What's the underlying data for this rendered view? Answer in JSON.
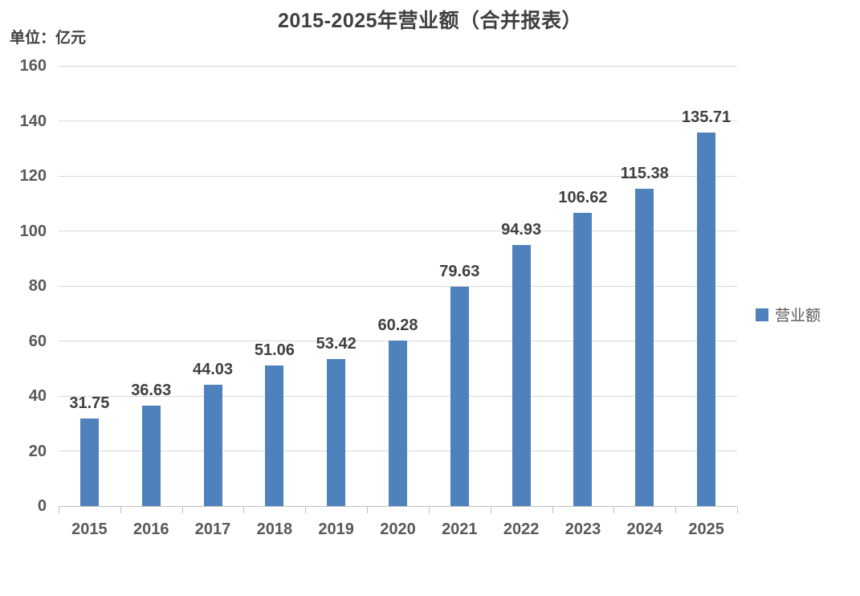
{
  "title": "2015-2025年营业额（合并报表）",
  "unit_label": "单位：亿元",
  "legend": {
    "label": "营业额",
    "swatch_color": "#4F81BD",
    "swatch_icon": "legend-square-icon"
  },
  "colors": {
    "bar": "#4F81BD",
    "gridline": "#d9d9d9",
    "axis_line": "#bfbfbf",
    "title_text": "#404040",
    "axis_text": "#595959",
    "data_label_text": "#404040"
  },
  "chart_data": {
    "type": "bar",
    "title": "2015-2025年营业额（合并报表）",
    "xlabel": "",
    "ylabel": "单位：亿元",
    "categories": [
      "2015",
      "2016",
      "2017",
      "2018",
      "2019",
      "2020",
      "2021",
      "2022",
      "2023",
      "2024",
      "2025"
    ],
    "series": [
      {
        "name": "营业额",
        "color": "#4F81BD",
        "values": [
          31.75,
          36.63,
          44.03,
          51.06,
          53.42,
          60.28,
          79.63,
          94.93,
          106.62,
          115.38,
          135.71
        ],
        "value_labels": [
          "31.75",
          "36.63",
          "44.03",
          "51.06",
          "53.42",
          "60.28",
          "79.63",
          "94.93",
          "106.62",
          "115.38",
          "135.71"
        ]
      }
    ],
    "ylim": [
      0,
      160
    ],
    "ytick_step": 20,
    "ytick_labels": [
      "0",
      "20",
      "40",
      "60",
      "80",
      "100",
      "120",
      "140",
      "160"
    ],
    "grid": true,
    "data_labels_shown": true,
    "legend_position": "right"
  }
}
